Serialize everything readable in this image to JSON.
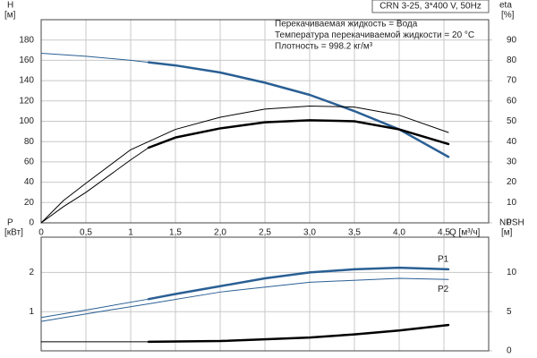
{
  "chart_data": [
    {
      "type": "line",
      "title": "CRN 3-25, 3*400 V, 50Hz",
      "annotations": [
        "Перекачиваемая жидкость = Вода",
        "Температура перекачиваемой жидкости = 20 °C",
        "Плотность = 998.2 кг/м³"
      ],
      "ylabel": "H",
      "yunit": "[м]",
      "y2label": "eta",
      "y2unit": "[%]",
      "xlabel": "Q [м³/ч]",
      "xlim": [
        0,
        5
      ],
      "xticks": [
        0,
        {
          "value": 0.5,
          "label": "0,5"
        },
        1,
        {
          "value": 1.5,
          "label": "1,5"
        },
        {
          "value": 2,
          "label": "2,0"
        },
        {
          "value": 2.5,
          "label": "2,5"
        },
        {
          "value": 3,
          "label": "3,0"
        },
        {
          "value": 3.5,
          "label": "3,5"
        },
        {
          "value": 4,
          "label": "4,0"
        },
        {
          "value": 4.5,
          "label": "4,5"
        }
      ],
      "ylim": [
        0,
        200
      ],
      "yticks": [
        0,
        20,
        40,
        60,
        80,
        100,
        120,
        140,
        160,
        180
      ],
      "y2lim": [
        0,
        100
      ],
      "y2ticks": [
        0,
        10,
        20,
        30,
        40,
        50,
        60,
        70,
        80,
        90
      ],
      "grid": true,
      "series": [
        {
          "color": "#2a5f94",
          "width": 1,
          "x": [
            0,
            0.5,
            1,
            1.2
          ],
          "values": [
            167,
            164,
            160,
            158
          ]
        },
        {
          "color": "#2a5f94",
          "width": 2.5,
          "x": [
            1.2,
            1.5,
            2,
            2.5,
            3,
            3.5,
            4,
            4.55
          ],
          "values": [
            158,
            155,
            148,
            138,
            126,
            110,
            92,
            65
          ]
        },
        {
          "color": "#000000",
          "width": 1,
          "axis": "y2",
          "x": [
            0,
            0.25,
            0.5,
            1,
            1.5,
            2,
            2.5,
            3,
            3.5,
            4,
            4.55
          ],
          "values": [
            0,
            11,
            19.5,
            36,
            46,
            52,
            56,
            57.5,
            57,
            53,
            44.5
          ]
        },
        {
          "color": "#000000",
          "width": 1,
          "axis": "y2",
          "x": [
            0,
            0.25,
            0.5,
            1,
            1.2
          ],
          "values": [
            0,
            8,
            15,
            31,
            37
          ]
        },
        {
          "color": "#000000",
          "width": 2.5,
          "axis": "y2",
          "x": [
            1.2,
            1.5,
            2,
            2.5,
            3,
            3.5,
            4,
            4.55
          ],
          "values": [
            37,
            42,
            46.5,
            49.5,
            50.5,
            50,
            46,
            38.8
          ]
        }
      ]
    },
    {
      "type": "line",
      "ylabel": "P",
      "yunit": "[кВт]",
      "y2label": "NPSH",
      "y2unit": "[м]",
      "xlim": [
        0,
        5
      ],
      "xticks": [
        0.5,
        1,
        1.5,
        2,
        2.5,
        3,
        3.5,
        4,
        4.5
      ],
      "xtick_labels": false,
      "ylim": [
        0,
        2.9
      ],
      "yticks": [
        1,
        2
      ],
      "y2lim": [
        0,
        14.5
      ],
      "y2ticks": [
        0,
        5,
        10
      ],
      "grid": true,
      "series": [
        {
          "color": "#2a5f94",
          "width": 1,
          "x": [
            0,
            0.6,
            1.2
          ],
          "values": [
            0.85,
            1.08,
            1.32
          ]
        },
        {
          "name": "P1",
          "color": "#2a5f94",
          "width": 2.5,
          "x": [
            1.2,
            1.5,
            2,
            2.5,
            3,
            3.5,
            4,
            4.55
          ],
          "values": [
            1.32,
            1.45,
            1.65,
            1.85,
            2.0,
            2.08,
            2.12,
            2.08
          ]
        },
        {
          "name": "P2",
          "color": "#2a5f94",
          "width": 1,
          "x": [
            0,
            0.6,
            1.2,
            2,
            3,
            4,
            4.55
          ],
          "values": [
            0.75,
            0.98,
            1.2,
            1.5,
            1.75,
            1.85,
            1.82
          ]
        },
        {
          "color": "#000000",
          "width": 1,
          "axis": "y2",
          "x": [
            0,
            1.2
          ],
          "values": [
            1.15,
            1.15
          ]
        },
        {
          "color": "#000000",
          "width": 2.5,
          "axis": "y2",
          "x": [
            1.2,
            2,
            3,
            3.5,
            4,
            4.55
          ],
          "values": [
            1.15,
            1.25,
            1.7,
            2.1,
            2.6,
            3.3
          ]
        }
      ]
    }
  ]
}
